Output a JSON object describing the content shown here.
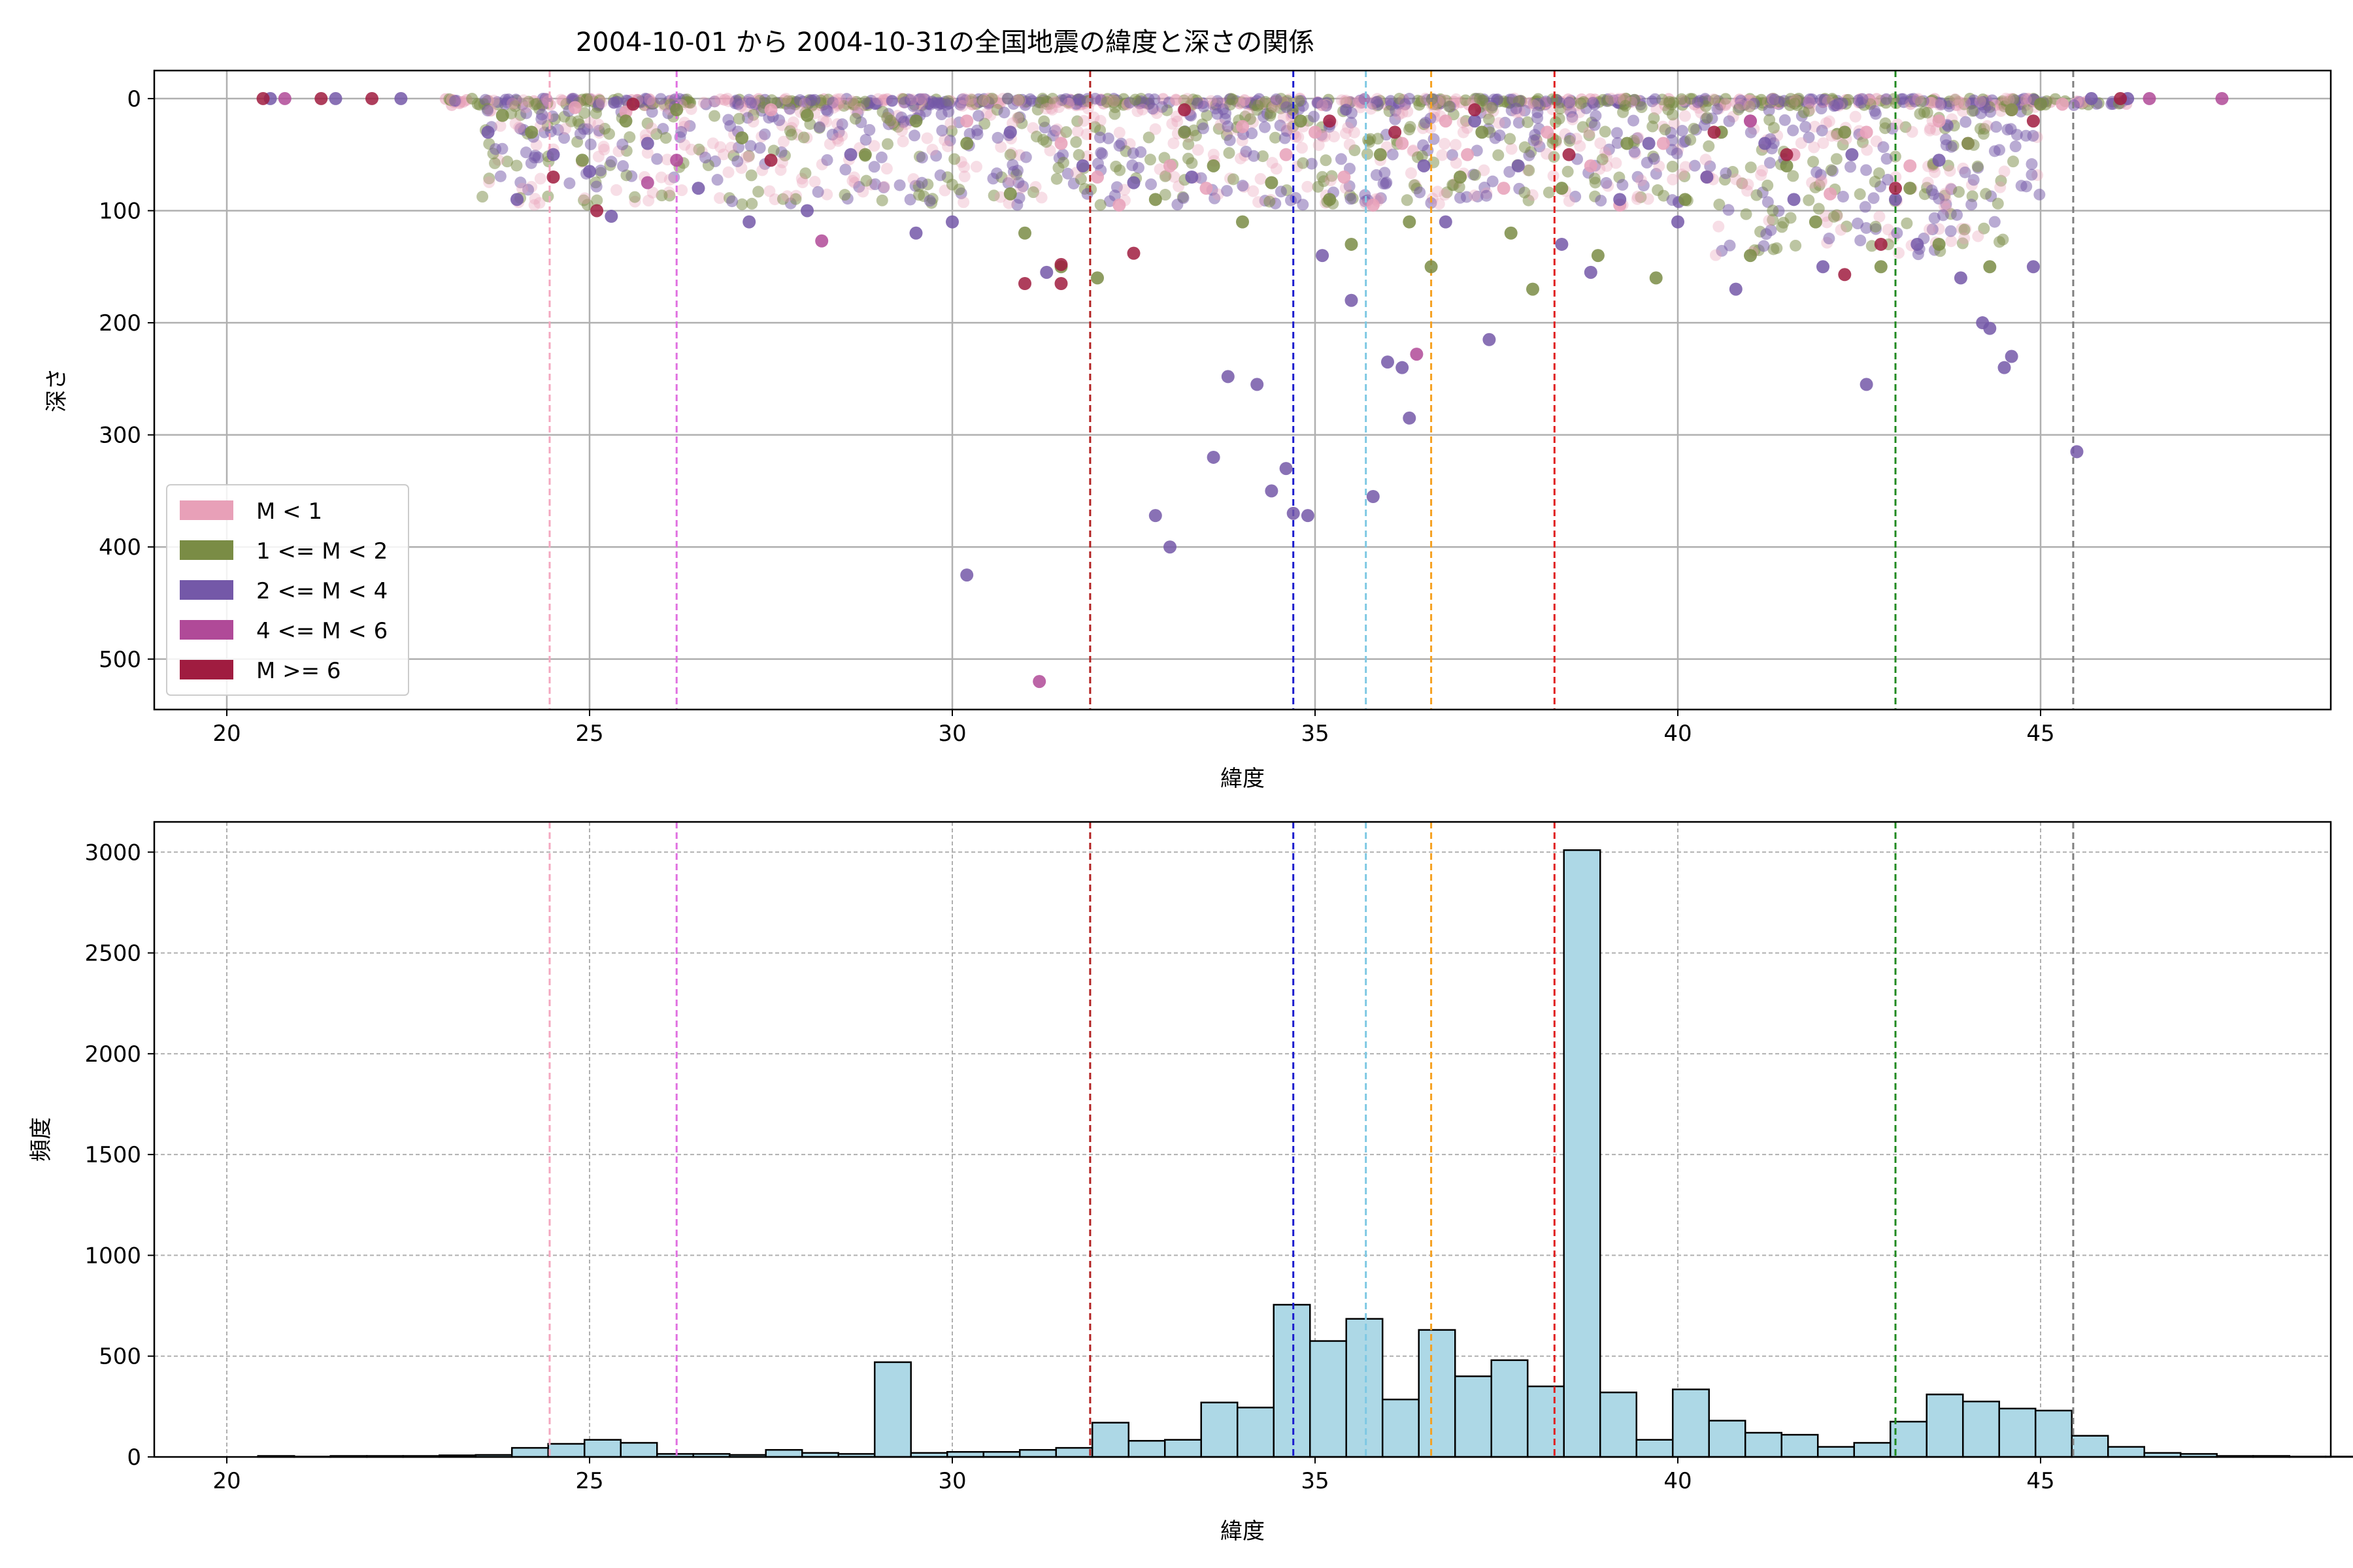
{
  "chart_data": [
    {
      "type": "scatter",
      "title": "2004-10-01 から 2004-10-31の全国地震の緯度と深さの関係",
      "xlabel": "緯度",
      "ylabel": "深さ",
      "xlim": [
        19,
        49
      ],
      "ylim": [
        545,
        -25
      ],
      "y_inverted": true,
      "xticks": [
        20,
        25,
        30,
        35,
        40,
        45
      ],
      "yticks": [
        0,
        100,
        200,
        300,
        400,
        500
      ],
      "grid": true,
      "legend_position": "lower-left",
      "legend": [
        {
          "label": "M < 1",
          "color": "#e8a0b8"
        },
        {
          "label": "1 <= M < 2",
          "color": "#7a8c45"
        },
        {
          "label": "2 <= M < 4",
          "color": "#7458a8"
        },
        {
          "label": "4 <= M < 6",
          "color": "#b04a98"
        },
        {
          "label": "M >= 6",
          "color": "#a01c40"
        }
      ],
      "reference_lines": [
        {
          "x": 24.45,
          "color": "#f4a8c0"
        },
        {
          "x": 26.2,
          "color": "#e070e0"
        },
        {
          "x": 31.9,
          "color": "#b22222"
        },
        {
          "x": 34.7,
          "color": "#1a1acd"
        },
        {
          "x": 35.7,
          "color": "#7ec8e3"
        },
        {
          "x": 36.6,
          "color": "#f5a020"
        },
        {
          "x": 38.3,
          "color": "#e02020"
        },
        {
          "x": 43.0,
          "color": "#208a20"
        },
        {
          "x": 45.45,
          "color": "#808080"
        }
      ],
      "series": [
        {
          "name": "M < 1",
          "points": [
            [
              24.8,
              8
            ],
            [
              25.5,
              12
            ],
            [
              27.5,
              10
            ],
            [
              30.2,
              20
            ],
            [
              31.5,
              40
            ],
            [
              32,
              70
            ],
            [
              32.3,
              95
            ],
            [
              33,
              60
            ],
            [
              33.5,
              80
            ],
            [
              34,
              25
            ],
            [
              34.6,
              50
            ],
            [
              35,
              30
            ],
            [
              35.4,
              70
            ],
            [
              35.8,
              95
            ],
            [
              36.2,
              40
            ],
            [
              36.8,
              20
            ],
            [
              37.1,
              50
            ],
            [
              37.6,
              80
            ],
            [
              38.2,
              30
            ],
            [
              38.8,
              60
            ],
            [
              39.2,
              95
            ],
            [
              39.8,
              40
            ],
            [
              40.4,
              70
            ],
            [
              41,
              20
            ],
            [
              41.6,
              50
            ],
            [
              42.1,
              85
            ],
            [
              42.6,
              30
            ],
            [
              43.2,
              60
            ],
            [
              43.6,
              20
            ],
            [
              44,
              40
            ],
            [
              44.6,
              10
            ],
            [
              45.3,
              5
            ]
          ]
        },
        {
          "name": "1 <= M < 2",
          "points": [
            [
              23.8,
              15
            ],
            [
              24.2,
              30
            ],
            [
              24.9,
              55
            ],
            [
              25.5,
              20
            ],
            [
              26.2,
              10
            ],
            [
              27.1,
              35
            ],
            [
              28,
              15
            ],
            [
              28.8,
              50
            ],
            [
              29.5,
              20
            ],
            [
              30.2,
              40
            ],
            [
              30.8,
              85
            ],
            [
              31,
              120
            ],
            [
              31.5,
              150
            ],
            [
              32,
              160
            ],
            [
              32.8,
              90
            ],
            [
              33.2,
              30
            ],
            [
              33.6,
              60
            ],
            [
              34,
              110
            ],
            [
              34.4,
              75
            ],
            [
              34.8,
              20
            ],
            [
              35.2,
              90
            ],
            [
              35.5,
              130
            ],
            [
              35.9,
              50
            ],
            [
              36.3,
              110
            ],
            [
              36.6,
              150
            ],
            [
              37,
              70
            ],
            [
              37.3,
              30
            ],
            [
              37.7,
              120
            ],
            [
              38,
              170
            ],
            [
              38.4,
              80
            ],
            [
              38.9,
              140
            ],
            [
              39.3,
              40
            ],
            [
              39.7,
              160
            ],
            [
              40.1,
              90
            ],
            [
              40.6,
              30
            ],
            [
              41,
              140
            ],
            [
              41.5,
              60
            ],
            [
              41.9,
              110
            ],
            [
              42.3,
              30
            ],
            [
              42.8,
              150
            ],
            [
              43.2,
              80
            ],
            [
              43.6,
              130
            ],
            [
              44,
              40
            ],
            [
              44.3,
              150
            ],
            [
              44.6,
              10
            ],
            [
              45,
              5
            ]
          ]
        },
        {
          "name": "2 <= M < 4",
          "points": [
            [
              20.6,
              0
            ],
            [
              21.5,
              0
            ],
            [
              22.4,
              0
            ],
            [
              23.6,
              30
            ],
            [
              24,
              90
            ],
            [
              24.5,
              50
            ],
            [
              25,
              65
            ],
            [
              25.3,
              105
            ],
            [
              25.8,
              40
            ],
            [
              26.5,
              80
            ],
            [
              27.2,
              110
            ],
            [
              28,
              100
            ],
            [
              28.6,
              50
            ],
            [
              29.5,
              120
            ],
            [
              30,
              110
            ],
            [
              30.2,
              425
            ],
            [
              30.8,
              30
            ],
            [
              31.3,
              155
            ],
            [
              31.8,
              60
            ],
            [
              32.5,
              75
            ],
            [
              32.8,
              372
            ],
            [
              33,
              400
            ],
            [
              33.3,
              70
            ],
            [
              33.6,
              320
            ],
            [
              33.8,
              248
            ],
            [
              34.2,
              255
            ],
            [
              34.4,
              350
            ],
            [
              34.6,
              330
            ],
            [
              34.7,
              370
            ],
            [
              34.9,
              372
            ],
            [
              35.1,
              140
            ],
            [
              35.5,
              180
            ],
            [
              35.8,
              355
            ],
            [
              36,
              235
            ],
            [
              36.2,
              240
            ],
            [
              36.3,
              285
            ],
            [
              36.5,
              60
            ],
            [
              36.8,
              110
            ],
            [
              37.2,
              20
            ],
            [
              37.4,
              215
            ],
            [
              37.8,
              60
            ],
            [
              38.4,
              130
            ],
            [
              38.8,
              155
            ],
            [
              39.2,
              90
            ],
            [
              39.6,
              40
            ],
            [
              40,
              110
            ],
            [
              40.4,
              70
            ],
            [
              40.8,
              170
            ],
            [
              41.2,
              40
            ],
            [
              41.6,
              90
            ],
            [
              42,
              150
            ],
            [
              42.4,
              50
            ],
            [
              42.6,
              255
            ],
            [
              43,
              90
            ],
            [
              43.3,
              130
            ],
            [
              43.6,
              55
            ],
            [
              43.9,
              160
            ],
            [
              44.2,
              200
            ],
            [
              44.3,
              205
            ],
            [
              44.5,
              240
            ],
            [
              44.6,
              230
            ],
            [
              44.9,
              150
            ],
            [
              45.5,
              315
            ],
            [
              45.7,
              0
            ],
            [
              46.2,
              0
            ]
          ]
        },
        {
          "name": "4 <= M < 6",
          "points": [
            [
              20.8,
              0
            ],
            [
              25.8,
              75
            ],
            [
              26.2,
              55
            ],
            [
              28.2,
              127
            ],
            [
              31.2,
              520
            ],
            [
              36.4,
              228
            ],
            [
              41,
              20
            ],
            [
              46.5,
              0
            ],
            [
              47.5,
              0
            ]
          ]
        },
        {
          "name": "M >= 6",
          "points": [
            [
              20.5,
              0
            ],
            [
              21.3,
              0
            ],
            [
              22,
              0
            ],
            [
              24.5,
              70
            ],
            [
              25.1,
              100
            ],
            [
              25.6,
              5
            ],
            [
              27.5,
              55
            ],
            [
              31,
              165
            ],
            [
              31.5,
              165
            ],
            [
              31.5,
              148
            ],
            [
              32.5,
              138
            ],
            [
              33.2,
              10
            ],
            [
              35.2,
              20
            ],
            [
              36.1,
              30
            ],
            [
              37.2,
              10
            ],
            [
              38.5,
              50
            ],
            [
              40.5,
              30
            ],
            [
              41.5,
              50
            ],
            [
              42.3,
              157
            ],
            [
              42.8,
              130
            ],
            [
              43,
              80
            ],
            [
              44.9,
              20
            ],
            [
              46.1,
              0
            ]
          ]
        }
      ]
    },
    {
      "type": "bar",
      "subtype": "histogram",
      "xlabel": "緯度",
      "ylabel": "頻度",
      "xlim": [
        19,
        49
      ],
      "ylim": [
        0,
        3150
      ],
      "xticks": [
        20,
        25,
        30,
        35,
        40,
        45
      ],
      "yticks": [
        0,
        500,
        1000,
        1500,
        2000,
        2500,
        3000
      ],
      "grid": true,
      "bar_color": "#add8e6",
      "edge_color": "#000000",
      "bin_start": 20.43,
      "bin_width": 0.5,
      "values": [
        5,
        2,
        5,
        5,
        5,
        8,
        10,
        45,
        65,
        85,
        70,
        15,
        15,
        10,
        35,
        20,
        15,
        470,
        20,
        25,
        25,
        35,
        45,
        170,
        80,
        85,
        270,
        245,
        755,
        575,
        685,
        285,
        630,
        400,
        480,
        350,
        3010,
        320,
        85,
        335,
        180,
        120,
        110,
        50,
        70,
        175,
        310,
        275,
        240,
        230,
        105,
        50,
        20,
        15,
        5,
        5,
        2,
        2
      ],
      "reference_lines": [
        {
          "x": 24.45,
          "color": "#f4a8c0"
        },
        {
          "x": 26.2,
          "color": "#e070e0"
        },
        {
          "x": 31.9,
          "color": "#b22222"
        },
        {
          "x": 34.7,
          "color": "#1a1acd"
        },
        {
          "x": 35.7,
          "color": "#7ec8e3"
        },
        {
          "x": 36.6,
          "color": "#f5a020"
        },
        {
          "x": 38.3,
          "color": "#e02020"
        },
        {
          "x": 43.0,
          "color": "#208a20"
        },
        {
          "x": 45.45,
          "color": "#808080"
        }
      ]
    }
  ]
}
